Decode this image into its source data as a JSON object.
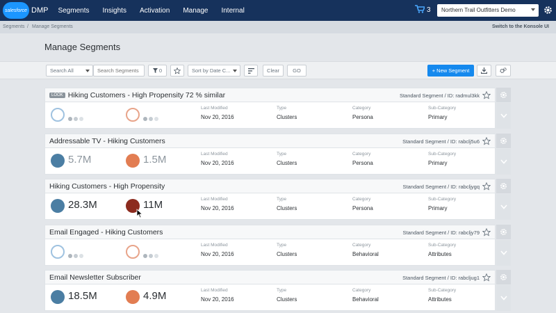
{
  "nav": {
    "logo_text": "salesforce",
    "product": "DMP",
    "items": [
      "Segments",
      "Insights",
      "Activation",
      "Manage",
      "Internal"
    ],
    "cart_count": "3",
    "org": "Northern Trail Outfitters Demo"
  },
  "breadcrumb": {
    "items": [
      "Segments",
      "Manage Segments"
    ],
    "separator": "/",
    "konsole_link": "Switch to the Konsole UI"
  },
  "page_title": "Manage Segments",
  "toolbar": {
    "search_scope": "Search All",
    "search_placeholder": "Search Segments",
    "filter_count": "0",
    "sort": "Sort by Date C...",
    "clear": "Clear",
    "go": "GO",
    "new_segment": "+ New Segment"
  },
  "labels": {
    "last_modified": "Last Modified",
    "type": "Type",
    "category": "Category",
    "sub_category": "Sub-Category"
  },
  "segments": [
    {
      "look": "LOOK",
      "title": "Hiking Customers - High Propensity 72 % similar",
      "id_text": "Standard Segment / ID: radmul3kk",
      "devices": "",
      "people": "",
      "last_modified": "Nov 20, 2016",
      "type": "Clusters",
      "category": "Persona",
      "sub_category": "Primary"
    },
    {
      "look": "",
      "title": "Addressable TV - Hiking Customers",
      "id_text": "Standard Segment / ID: rabclj5u6",
      "devices": "5.7M",
      "people": "1.5M",
      "last_modified": "Nov 20, 2016",
      "type": "Clusters",
      "category": "Persona",
      "sub_category": "Primary"
    },
    {
      "look": "",
      "title": "Hiking Customers - High Propensity",
      "id_text": "Standard Segment / ID: rabcljygq",
      "devices": "28.3M",
      "people": "11M",
      "last_modified": "Nov 20, 2016",
      "type": "Clusters",
      "category": "Persona",
      "sub_category": "Primary"
    },
    {
      "look": "",
      "title": "Email Engaged - Hiking Customers",
      "id_text": "Standard Segment / ID: rabcljy79",
      "devices": "",
      "people": "",
      "last_modified": "Nov 20, 2016",
      "type": "Clusters",
      "category": "Behavioral",
      "sub_category": "Attributes"
    },
    {
      "look": "",
      "title": "Email Newsletter Subscriber",
      "id_text": "Standard Segment / ID: rabcljug1",
      "devices": "18.5M",
      "people": "4.9M",
      "last_modified": "Nov 20, 2016",
      "type": "Clusters",
      "category": "Behavioral",
      "sub_category": "Attributes"
    }
  ]
}
